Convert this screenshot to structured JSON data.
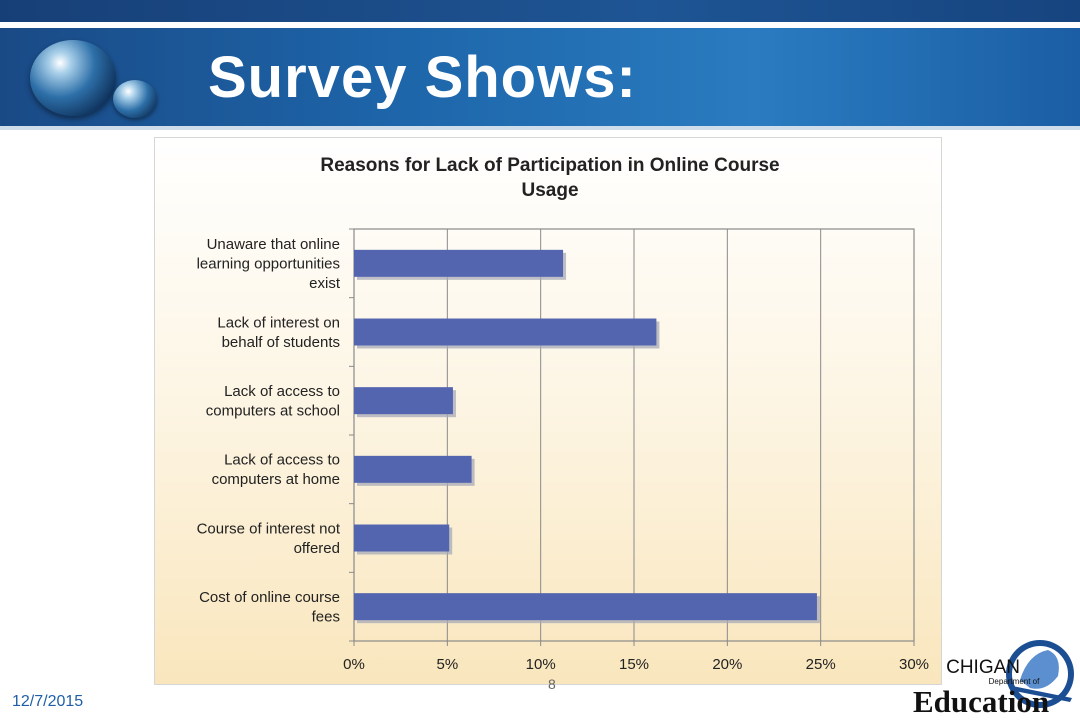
{
  "slide": {
    "title": "Survey Shows:",
    "date": "12/7/2015",
    "page_number": "8"
  },
  "logo": {
    "line1": "CHIGAN",
    "line2": "Department of",
    "line3": "Education"
  },
  "colors": {
    "bar": "#5465b0",
    "header": "#1d64a8",
    "accent_text": "#1f5fa8"
  },
  "chart_data": {
    "type": "bar",
    "orientation": "horizontal",
    "title": "Reasons for Lack of Participation in Online Course Usage",
    "title_lines": [
      "Reasons for Lack of Participation in Online Course",
      "Usage"
    ],
    "categories": [
      "Unaware that online learning opportunities exist",
      "Lack of interest on behalf of students",
      "Lack of access to computers at school",
      "Lack of access to computers at home",
      "Course of interest not offered",
      "Cost of online course fees"
    ],
    "category_lines": [
      [
        "Unaware that online",
        "learning opportunities",
        "exist"
      ],
      [
        "Lack of interest on",
        "behalf of students"
      ],
      [
        "Lack of access to",
        "computers at school"
      ],
      [
        "Lack of access to",
        "computers at home"
      ],
      [
        "Course of interest not",
        "offered"
      ],
      [
        "Cost of online course",
        "fees"
      ]
    ],
    "values": [
      11.2,
      16.2,
      5.3,
      6.3,
      5.1,
      24.8
    ],
    "xlim": [
      0,
      30
    ],
    "xticks": [
      0,
      5,
      10,
      15,
      20,
      25,
      30
    ],
    "xtick_labels": [
      "0%",
      "5%",
      "10%",
      "15%",
      "20%",
      "25%",
      "30%"
    ],
    "grid": true,
    "legend": "none"
  }
}
